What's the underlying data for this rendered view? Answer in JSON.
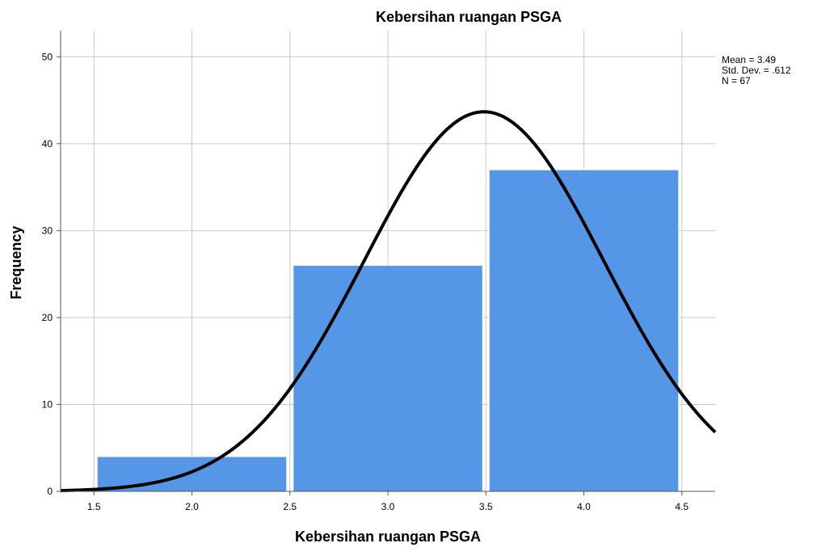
{
  "chart_data": {
    "type": "bar",
    "title": "Kebersihan ruangan PSGA",
    "xlabel": "Kebersihan ruangan PSGA",
    "ylabel": "Frequency",
    "xlim": [
      1.33,
      4.67
    ],
    "ylim": [
      0,
      53
    ],
    "x_ticks": [
      1.5,
      2.0,
      2.5,
      3.0,
      3.5,
      4.0,
      4.5
    ],
    "x_tick_labels": [
      "1.5",
      "2.0",
      "2.5",
      "3.0",
      "3.5",
      "4.0",
      "4.5"
    ],
    "y_ticks": [
      0,
      10,
      20,
      30,
      40,
      50
    ],
    "y_tick_labels": [
      "0",
      "10",
      "20",
      "30",
      "40",
      "50"
    ],
    "bars": [
      {
        "category": "2",
        "x_start": 1.5,
        "x_end": 2.5,
        "value": 4
      },
      {
        "category": "3",
        "x_start": 2.5,
        "x_end": 3.5,
        "value": 26
      },
      {
        "category": "4",
        "x_start": 3.5,
        "x_end": 4.5,
        "value": 37
      }
    ],
    "normal_curve": {
      "mean": 3.49,
      "std_dev": 0.612,
      "n": 67,
      "bin_width": 1
    },
    "stats": {
      "mean_label": "Mean = 3.49",
      "std_label": "Std. Dev. = .612",
      "n_label": "N = 67"
    },
    "grid": true,
    "colors": {
      "bar": "#5596e6",
      "curve": "#000000",
      "grid": "#c8c8c8"
    }
  }
}
